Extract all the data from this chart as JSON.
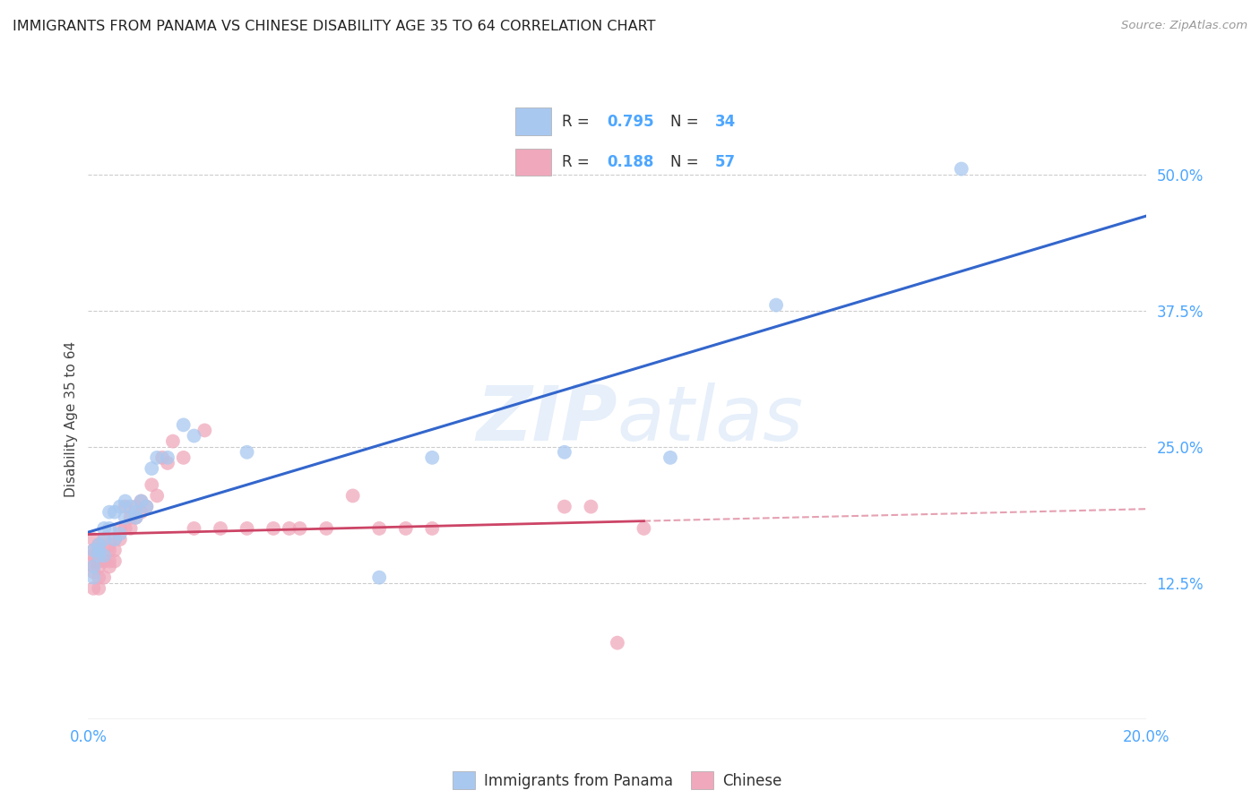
{
  "title": "IMMIGRANTS FROM PANAMA VS CHINESE DISABILITY AGE 35 TO 64 CORRELATION CHART",
  "source": "Source: ZipAtlas.com",
  "tick_color": "#4da6ff",
  "ylabel": "Disability Age 35 to 64",
  "xlim": [
    0.0,
    0.2
  ],
  "ylim": [
    0.0,
    0.55
  ],
  "xticks": [
    0.0,
    0.05,
    0.1,
    0.15,
    0.2
  ],
  "yticks": [
    0.125,
    0.25,
    0.375,
    0.5
  ],
  "ytick_labels": [
    "12.5%",
    "25.0%",
    "37.5%",
    "50.0%"
  ],
  "xtick_labels": [
    "0.0%",
    "",
    "",
    "",
    "20.0%"
  ],
  "grid_color": "#cccccc",
  "watermark_zip": "ZIP",
  "watermark_atlas": "atlas",
  "legend_R1": "0.795",
  "legend_N1": "34",
  "legend_R2": "0.188",
  "legend_N2": "57",
  "blue_scatter_color": "#a8c8f0",
  "pink_scatter_color": "#f0a8bc",
  "blue_line_color": "#3366cc",
  "pink_line_color": "#cc4466",
  "legend_label_1": "Immigrants from Panama",
  "legend_label_2": "Chinese",
  "panama_x": [
    0.001,
    0.001,
    0.001,
    0.002,
    0.002,
    0.002,
    0.003,
    0.003,
    0.003,
    0.004,
    0.004,
    0.005,
    0.005,
    0.006,
    0.006,
    0.007,
    0.007,
    0.008,
    0.009,
    0.009,
    0.01,
    0.011,
    0.012,
    0.013,
    0.015,
    0.018,
    0.02,
    0.03,
    0.055,
    0.065,
    0.09,
    0.11,
    0.13,
    0.165
  ],
  "panama_y": [
    0.13,
    0.14,
    0.155,
    0.155,
    0.16,
    0.15,
    0.165,
    0.175,
    0.15,
    0.175,
    0.19,
    0.19,
    0.165,
    0.195,
    0.17,
    0.2,
    0.185,
    0.195,
    0.19,
    0.185,
    0.2,
    0.195,
    0.23,
    0.24,
    0.24,
    0.27,
    0.26,
    0.245,
    0.13,
    0.24,
    0.245,
    0.24,
    0.38,
    0.505
  ],
  "chinese_x": [
    0.001,
    0.001,
    0.001,
    0.001,
    0.001,
    0.001,
    0.001,
    0.002,
    0.002,
    0.002,
    0.002,
    0.002,
    0.002,
    0.003,
    0.003,
    0.003,
    0.003,
    0.004,
    0.004,
    0.004,
    0.004,
    0.005,
    0.005,
    0.005,
    0.006,
    0.006,
    0.007,
    0.007,
    0.008,
    0.008,
    0.009,
    0.009,
    0.01,
    0.01,
    0.011,
    0.012,
    0.013,
    0.014,
    0.015,
    0.016,
    0.018,
    0.02,
    0.022,
    0.025,
    0.03,
    0.035,
    0.038,
    0.04,
    0.045,
    0.05,
    0.055,
    0.06,
    0.065,
    0.09,
    0.095,
    0.1,
    0.105
  ],
  "chinese_y": [
    0.15,
    0.155,
    0.145,
    0.135,
    0.12,
    0.165,
    0.14,
    0.14,
    0.155,
    0.145,
    0.13,
    0.16,
    0.12,
    0.15,
    0.145,
    0.165,
    0.13,
    0.155,
    0.16,
    0.145,
    0.14,
    0.155,
    0.165,
    0.145,
    0.175,
    0.165,
    0.195,
    0.175,
    0.185,
    0.175,
    0.195,
    0.185,
    0.19,
    0.2,
    0.195,
    0.215,
    0.205,
    0.24,
    0.235,
    0.255,
    0.24,
    0.175,
    0.265,
    0.175,
    0.175,
    0.175,
    0.175,
    0.175,
    0.175,
    0.205,
    0.175,
    0.175,
    0.175,
    0.195,
    0.195,
    0.07,
    0.175
  ]
}
